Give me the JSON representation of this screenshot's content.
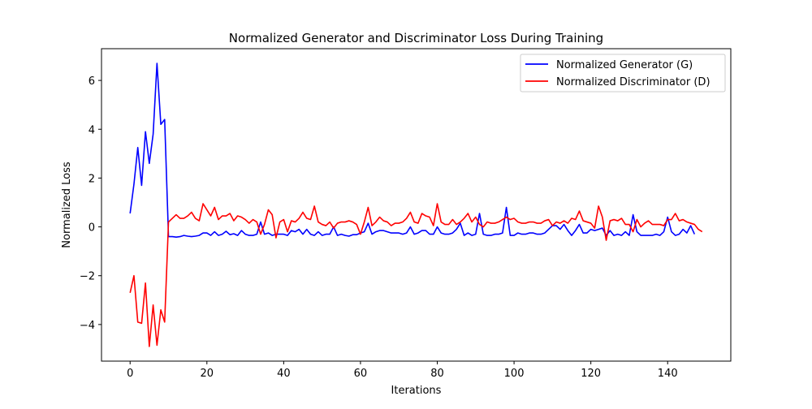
{
  "chart_data": {
    "type": "line",
    "title": "Normalized Generator and Discriminator Loss During Training",
    "xlabel": "Iterations",
    "ylabel": "Normalized Loss",
    "xlim": [
      -7.45,
      156.45
    ],
    "ylim": [
      -5.5,
      7.3
    ],
    "xticks": [
      0,
      20,
      40,
      60,
      80,
      100,
      120,
      140
    ],
    "yticks": [
      -4,
      -2,
      0,
      2,
      4,
      6
    ],
    "xtick_labels": [
      "0",
      "20",
      "40",
      "60",
      "80",
      "100",
      "120",
      "140"
    ],
    "ytick_labels": [
      "−4",
      "−2",
      "0",
      "2",
      "4",
      "6"
    ],
    "grid": false,
    "legend_position": "top-right",
    "series": [
      {
        "name": "Normalized Generator (G)",
        "color": "#0000ff",
        "values": [
          0.55,
          1.75,
          3.25,
          1.7,
          3.9,
          2.6,
          3.8,
          6.7,
          4.2,
          4.4,
          -0.4,
          -0.4,
          -0.42,
          -0.4,
          -0.35,
          -0.38,
          -0.4,
          -0.38,
          -0.35,
          -0.25,
          -0.25,
          -0.35,
          -0.2,
          -0.35,
          -0.3,
          -0.18,
          -0.32,
          -0.28,
          -0.35,
          -0.15,
          -0.3,
          -0.35,
          -0.35,
          -0.3,
          0.2,
          -0.3,
          -0.25,
          -0.35,
          -0.3,
          -0.3,
          -0.3,
          -0.35,
          -0.15,
          -0.2,
          -0.1,
          -0.3,
          -0.1,
          -0.3,
          -0.35,
          -0.2,
          -0.35,
          -0.3,
          -0.3,
          0.0,
          -0.35,
          -0.3,
          -0.35,
          -0.38,
          -0.32,
          -0.32,
          -0.25,
          -0.2,
          0.15,
          -0.3,
          -0.2,
          -0.15,
          -0.15,
          -0.2,
          -0.25,
          -0.25,
          -0.25,
          -0.3,
          -0.25,
          0.0,
          -0.3,
          -0.25,
          -0.15,
          -0.15,
          -0.3,
          -0.3,
          0.0,
          -0.25,
          -0.3,
          -0.3,
          -0.25,
          -0.1,
          0.15,
          -0.35,
          -0.25,
          -0.35,
          -0.3,
          0.55,
          -0.3,
          -0.35,
          -0.35,
          -0.3,
          -0.3,
          -0.25,
          0.8,
          -0.35,
          -0.35,
          -0.25,
          -0.3,
          -0.3,
          -0.25,
          -0.25,
          -0.3,
          -0.3,
          -0.25,
          -0.1,
          0.05,
          0.05,
          -0.1,
          0.1,
          -0.15,
          -0.35,
          -0.15,
          0.1,
          -0.25,
          -0.25,
          -0.1,
          -0.15,
          -0.1,
          -0.05,
          -0.35,
          -0.15,
          -0.35,
          -0.3,
          -0.35,
          -0.2,
          -0.35,
          0.5,
          -0.2,
          -0.35,
          -0.35,
          -0.35,
          -0.35,
          -0.3,
          -0.35,
          -0.2,
          0.4,
          -0.2,
          -0.35,
          -0.3,
          -0.1,
          -0.25,
          0.05,
          -0.3
        ]
      },
      {
        "name": "Normalized Discriminator (D)",
        "color": "#ff0000",
        "values": [
          -2.7,
          -2.0,
          -3.9,
          -3.95,
          -2.3,
          -4.9,
          -3.2,
          -4.85,
          -3.4,
          -3.9,
          0.2,
          0.35,
          0.5,
          0.35,
          0.35,
          0.45,
          0.6,
          0.35,
          0.25,
          0.95,
          0.7,
          0.45,
          0.8,
          0.3,
          0.45,
          0.45,
          0.55,
          0.25,
          0.45,
          0.4,
          0.3,
          0.15,
          0.3,
          0.2,
          -0.3,
          0.1,
          0.7,
          0.5,
          -0.45,
          0.2,
          0.3,
          -0.2,
          0.25,
          0.2,
          0.35,
          0.6,
          0.35,
          0.3,
          0.85,
          0.2,
          0.1,
          0.05,
          0.2,
          -0.05,
          0.15,
          0.2,
          0.2,
          0.25,
          0.2,
          0.1,
          -0.3,
          0.2,
          0.8,
          0.05,
          0.2,
          0.4,
          0.25,
          0.2,
          0.05,
          0.15,
          0.15,
          0.2,
          0.35,
          0.6,
          0.2,
          0.15,
          0.55,
          0.45,
          0.4,
          0.05,
          0.95,
          0.2,
          0.1,
          0.1,
          0.3,
          0.1,
          0.2,
          0.35,
          0.55,
          0.2,
          0.4,
          0.1,
          0.0,
          0.2,
          0.15,
          0.15,
          0.2,
          0.3,
          0.4,
          0.3,
          0.35,
          0.2,
          0.15,
          0.15,
          0.2,
          0.2,
          0.15,
          0.15,
          0.25,
          0.3,
          0.05,
          0.2,
          0.15,
          0.25,
          0.15,
          0.35,
          0.3,
          0.65,
          0.25,
          0.2,
          0.15,
          -0.05,
          0.85,
          0.4,
          -0.55,
          0.25,
          0.3,
          0.25,
          0.35,
          0.1,
          0.1,
          -0.2,
          0.3,
          0.0,
          0.15,
          0.25,
          0.1,
          0.1,
          0.1,
          0.05,
          0.3,
          0.3,
          0.55,
          0.25,
          0.3,
          0.2,
          0.15,
          0.1,
          -0.1,
          -0.2
        ]
      }
    ]
  }
}
